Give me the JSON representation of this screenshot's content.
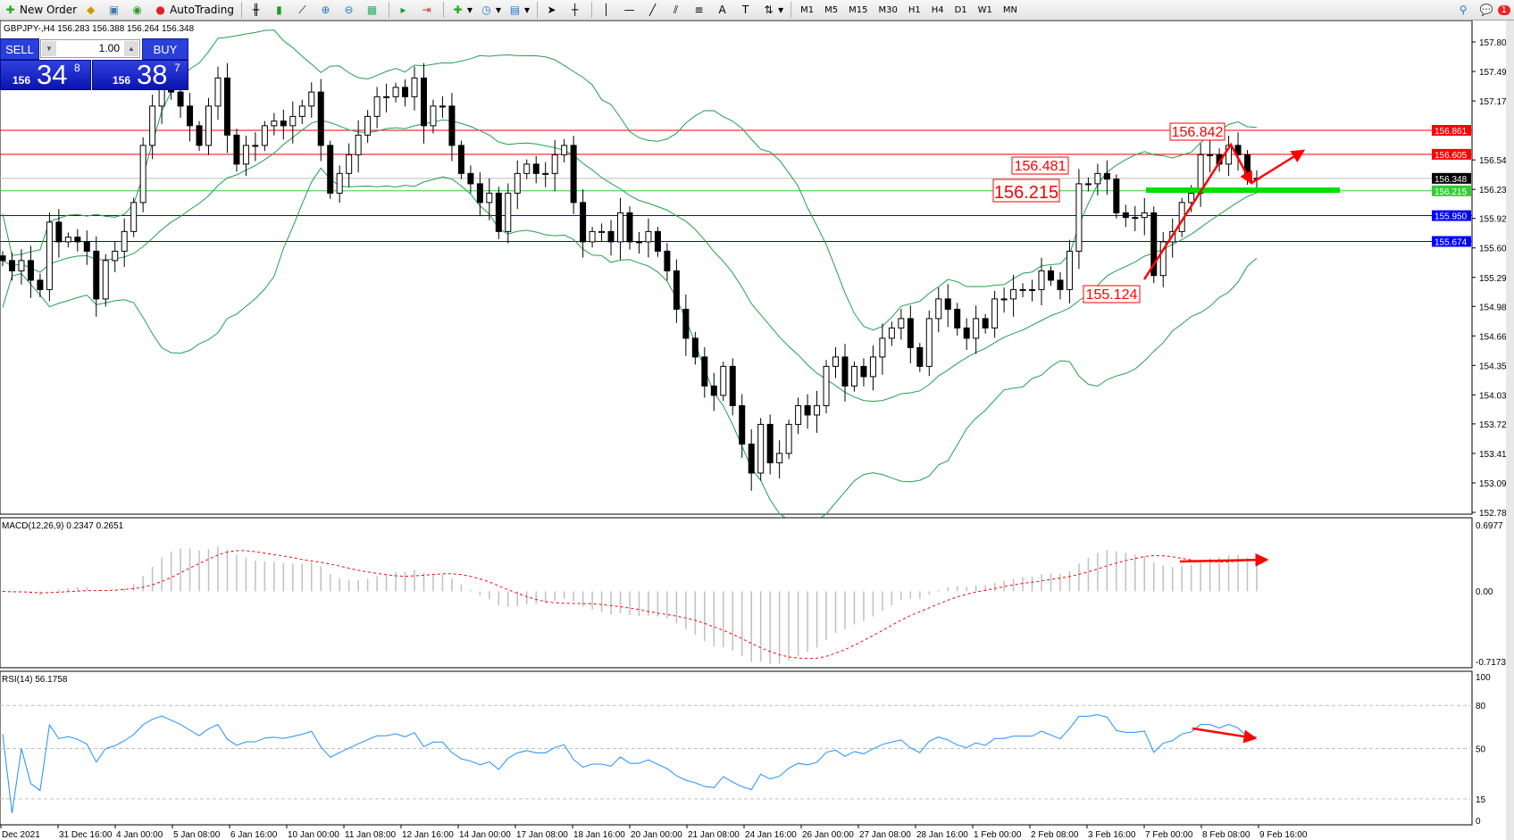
{
  "toolbar": {
    "new_order": "New Order",
    "autotrading": "AutoTrading",
    "timeframes": [
      "M1",
      "M5",
      "M15",
      "M30",
      "H1",
      "H4",
      "D1",
      "W1",
      "MN"
    ],
    "notification_count": "1"
  },
  "chart_header": "GBPJPY-,H4  156.283 156.388 156.264 156.348",
  "trade_panel": {
    "sell_label": "SELL",
    "buy_label": "BUY",
    "lot": "1.00",
    "sell_prefix": "156",
    "sell_big": "34",
    "sell_sup": "8",
    "buy_prefix": "156",
    "buy_big": "38",
    "buy_sup": "7"
  },
  "macd_label": "MACD(12,26,9) 0.2347 0.2651",
  "rsi_label": "RSI(14) 56.1758",
  "chart_data": {
    "type": "candlestick",
    "symbol": "GBPJPY-",
    "timeframe": "H4",
    "price_axis": [
      "157.805",
      "157.490",
      "157.175",
      "156.545",
      "156.230",
      "155.920",
      "155.605",
      "155.290",
      "154.980",
      "154.665",
      "154.350",
      "154.035",
      "153.725",
      "153.410",
      "153.095",
      "152.780"
    ],
    "ylim": [
      152.78,
      157.805
    ],
    "time_labels": [
      "Dec 2021",
      "31 Dec 16:00",
      "4 Jan 00:00",
      "5 Jan 08:00",
      "6 Jan 16:00",
      "10 Jan 00:00",
      "11 Jan 08:00",
      "12 Jan 16:00",
      "14 Jan 00:00",
      "17 Jan 08:00",
      "18 Jan 16:00",
      "20 Jan 00:00",
      "21 Jan 08:00",
      "24 Jan 16:00",
      "26 Jan 00:00",
      "27 Jan 08:00",
      "28 Jan 16:00",
      "1 Feb 00:00",
      "2 Feb 08:00",
      "3 Feb 16:00",
      "7 Feb 00:00",
      "8 Feb 08:00",
      "9 Feb 16:00"
    ],
    "closes": [
      155.47,
      155.36,
      155.47,
      155.26,
      155.16,
      155.88,
      155.67,
      155.72,
      155.67,
      155.57,
      155.06,
      155.47,
      155.57,
      155.78,
      156.09,
      156.7,
      157.12,
      157.42,
      157.27,
      157.12,
      156.91,
      156.7,
      157.12,
      157.42,
      156.81,
      156.5,
      156.7,
      156.7,
      156.91,
      156.96,
      156.91,
      157.01,
      157.12,
      157.27,
      156.7,
      156.19,
      156.4,
      156.6,
      156.81,
      157.01,
      157.22,
      157.22,
      157.32,
      157.22,
      157.42,
      156.91,
      157.12,
      157.12,
      156.7,
      156.4,
      156.29,
      156.09,
      156.19,
      155.78,
      156.19,
      156.4,
      156.5,
      156.4,
      156.4,
      156.6,
      156.7,
      156.09,
      155.67,
      155.78,
      155.78,
      155.67,
      155.98,
      155.67,
      155.67,
      155.78,
      155.57,
      155.36,
      154.95,
      154.64,
      154.44,
      154.13,
      154.03,
      154.34,
      153.92,
      153.51,
      153.2,
      153.72,
      153.31,
      153.41,
      153.72,
      153.92,
      153.82,
      153.92,
      154.34,
      154.44,
      154.13,
      154.34,
      154.23,
      154.44,
      154.64,
      154.75,
      154.85,
      154.54,
      154.34,
      154.85,
      155.06,
      154.95,
      154.75,
      154.64,
      154.85,
      154.75,
      155.06,
      155.06,
      155.16,
      155.16,
      155.16,
      155.36,
      155.26,
      155.16,
      155.57,
      156.29,
      156.29,
      156.4,
      156.34,
      155.98,
      155.93,
      155.93,
      155.98,
      155.31,
      155.67,
      155.78,
      156.09,
      156.19,
      156.6,
      156.6,
      156.5,
      156.7,
      156.6,
      156.34,
      156.348
    ],
    "levels": [
      {
        "price": "156.861",
        "color": "#ff0000"
      },
      {
        "price": "156.605",
        "color": "#ff0000"
      },
      {
        "price": "156.348",
        "color": "#000000",
        "line": "#c0c0c0"
      },
      {
        "price": "156.215",
        "color": "#33cc33"
      },
      {
        "price": "155.950",
        "color": "#0000ff"
      },
      {
        "price": "155.674",
        "color": "#0000ff"
      }
    ],
    "annotations": [
      "156.842",
      "156.481",
      "156.215",
      "155.124"
    ],
    "bollinger_color": "#22a050",
    "macd": {
      "axis": [
        "0.6977",
        "0.00",
        "-0.7173"
      ],
      "ylim": [
        -0.7173,
        0.6977
      ],
      "signal_color": "#ff0000",
      "hist_color": "#c0c0c0"
    },
    "rsi": {
      "axis": [
        "100",
        "80",
        "50",
        "15",
        "0"
      ],
      "levels": [
        80,
        50,
        15
      ],
      "color": "#1e90ff"
    }
  }
}
